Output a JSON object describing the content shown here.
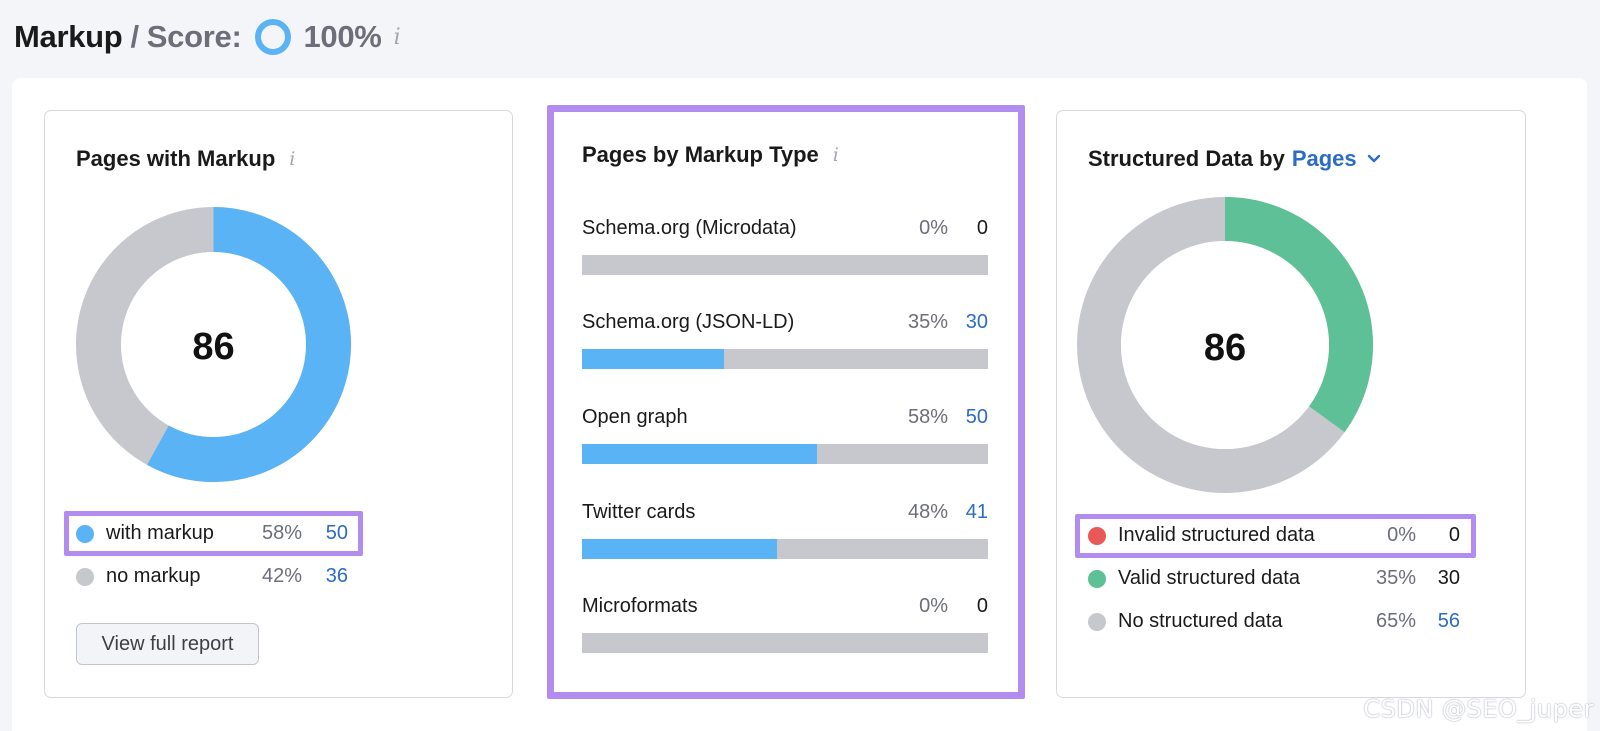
{
  "header": {
    "title": "Markup",
    "separator": "/",
    "score_label": "Score:",
    "score_value": "100%",
    "score_fraction": 1.0,
    "info_glyph": "i"
  },
  "pages_with_markup": {
    "title": "Pages with Markup",
    "info_glyph": "i",
    "total": "86",
    "legend": [
      {
        "label": "with markup",
        "pct": "58%",
        "count": "50",
        "color": "#59b3f5",
        "count_link": true
      },
      {
        "label": "no markup",
        "pct": "42%",
        "count": "36",
        "color": "#c6c8cd",
        "count_link": true
      }
    ],
    "button_label": "View full report"
  },
  "markup_type": {
    "title": "Pages by Markup Type",
    "info_glyph": "i",
    "rows": [
      {
        "label": "Schema.org (Microdata)",
        "pct": "0%",
        "count": "0",
        "fraction": 0.0,
        "count_link": false
      },
      {
        "label": "Schema.org (JSON-LD)",
        "pct": "35%",
        "count": "30",
        "fraction": 0.35,
        "count_link": true
      },
      {
        "label": "Open graph",
        "pct": "58%",
        "count": "50",
        "fraction": 0.58,
        "count_link": true
      },
      {
        "label": "Twitter cards",
        "pct": "48%",
        "count": "41",
        "fraction": 0.48,
        "count_link": true
      },
      {
        "label": "Microformats",
        "pct": "0%",
        "count": "0",
        "fraction": 0.0,
        "count_link": false
      }
    ]
  },
  "structured_data": {
    "title_prefix": "Structured Data by",
    "selector": "Pages",
    "total": "86",
    "legend": [
      {
        "label": "Invalid structured data",
        "pct": "0%",
        "count": "0",
        "color": "#e95858",
        "count_link": false
      },
      {
        "label": "Valid structured data",
        "pct": "35%",
        "count": "30",
        "color": "#5dc096",
        "count_link": false
      },
      {
        "label": "No structured data",
        "pct": "65%",
        "count": "56",
        "color": "#c6c8cd",
        "count_link": true
      }
    ]
  },
  "watermark": "CSDN @SEO_juper",
  "colors": {
    "accent_blue": "#59b3f5",
    "link_blue": "#2b6cc4",
    "highlight_purple": "#b38cf0",
    "valid_green": "#5dc096",
    "invalid_red": "#e95858",
    "neutral_gray": "#c6c8cd"
  }
}
